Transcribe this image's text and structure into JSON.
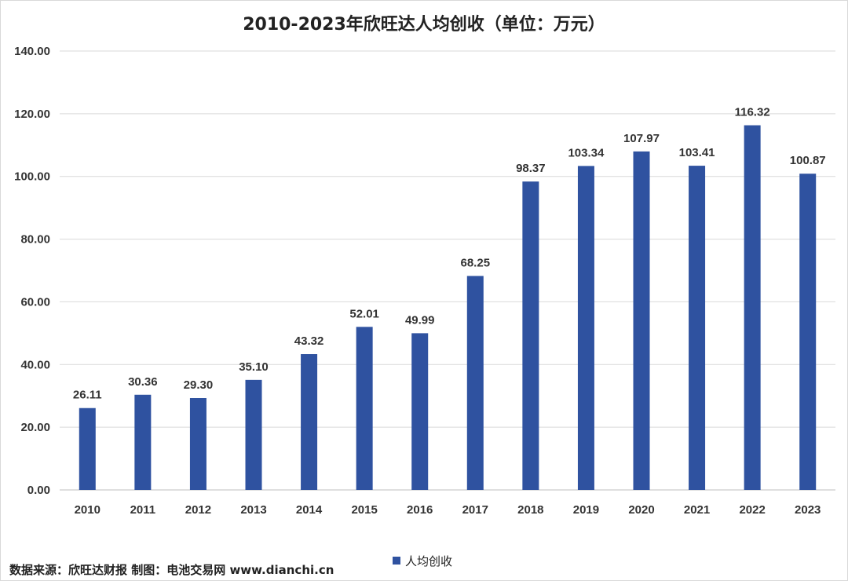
{
  "chart_data": {
    "type": "bar",
    "title": "2010-2023年欣旺达人均创收（单位：万元）",
    "categories": [
      "2010",
      "2011",
      "2012",
      "2013",
      "2014",
      "2015",
      "2016",
      "2017",
      "2018",
      "2019",
      "2020",
      "2021",
      "2022",
      "2023"
    ],
    "series": [
      {
        "name": "人均创收",
        "values": [
          26.11,
          30.36,
          29.3,
          35.1,
          43.32,
          52.01,
          49.99,
          68.25,
          98.37,
          103.34,
          107.97,
          103.41,
          116.32,
          100.87
        ],
        "labels": [
          "26.11",
          "30.36",
          "29.30",
          "35.10",
          "43.32",
          "52.01",
          "49.99",
          "68.25",
          "98.37",
          "103.34",
          "107.97",
          "103.41",
          "116.32",
          "100.87"
        ]
      }
    ],
    "ylim": [
      0,
      140
    ],
    "yticks": [
      "0.00",
      "20.00",
      "40.00",
      "60.00",
      "80.00",
      "100.00",
      "120.00",
      "140.00"
    ],
    "grid": true,
    "legend_position": "bottom",
    "bar_color": "#2f52a0"
  },
  "footer": {
    "source": "数据来源：欣旺达财报  制图：电池交易网 www.dianchi.cn"
  }
}
